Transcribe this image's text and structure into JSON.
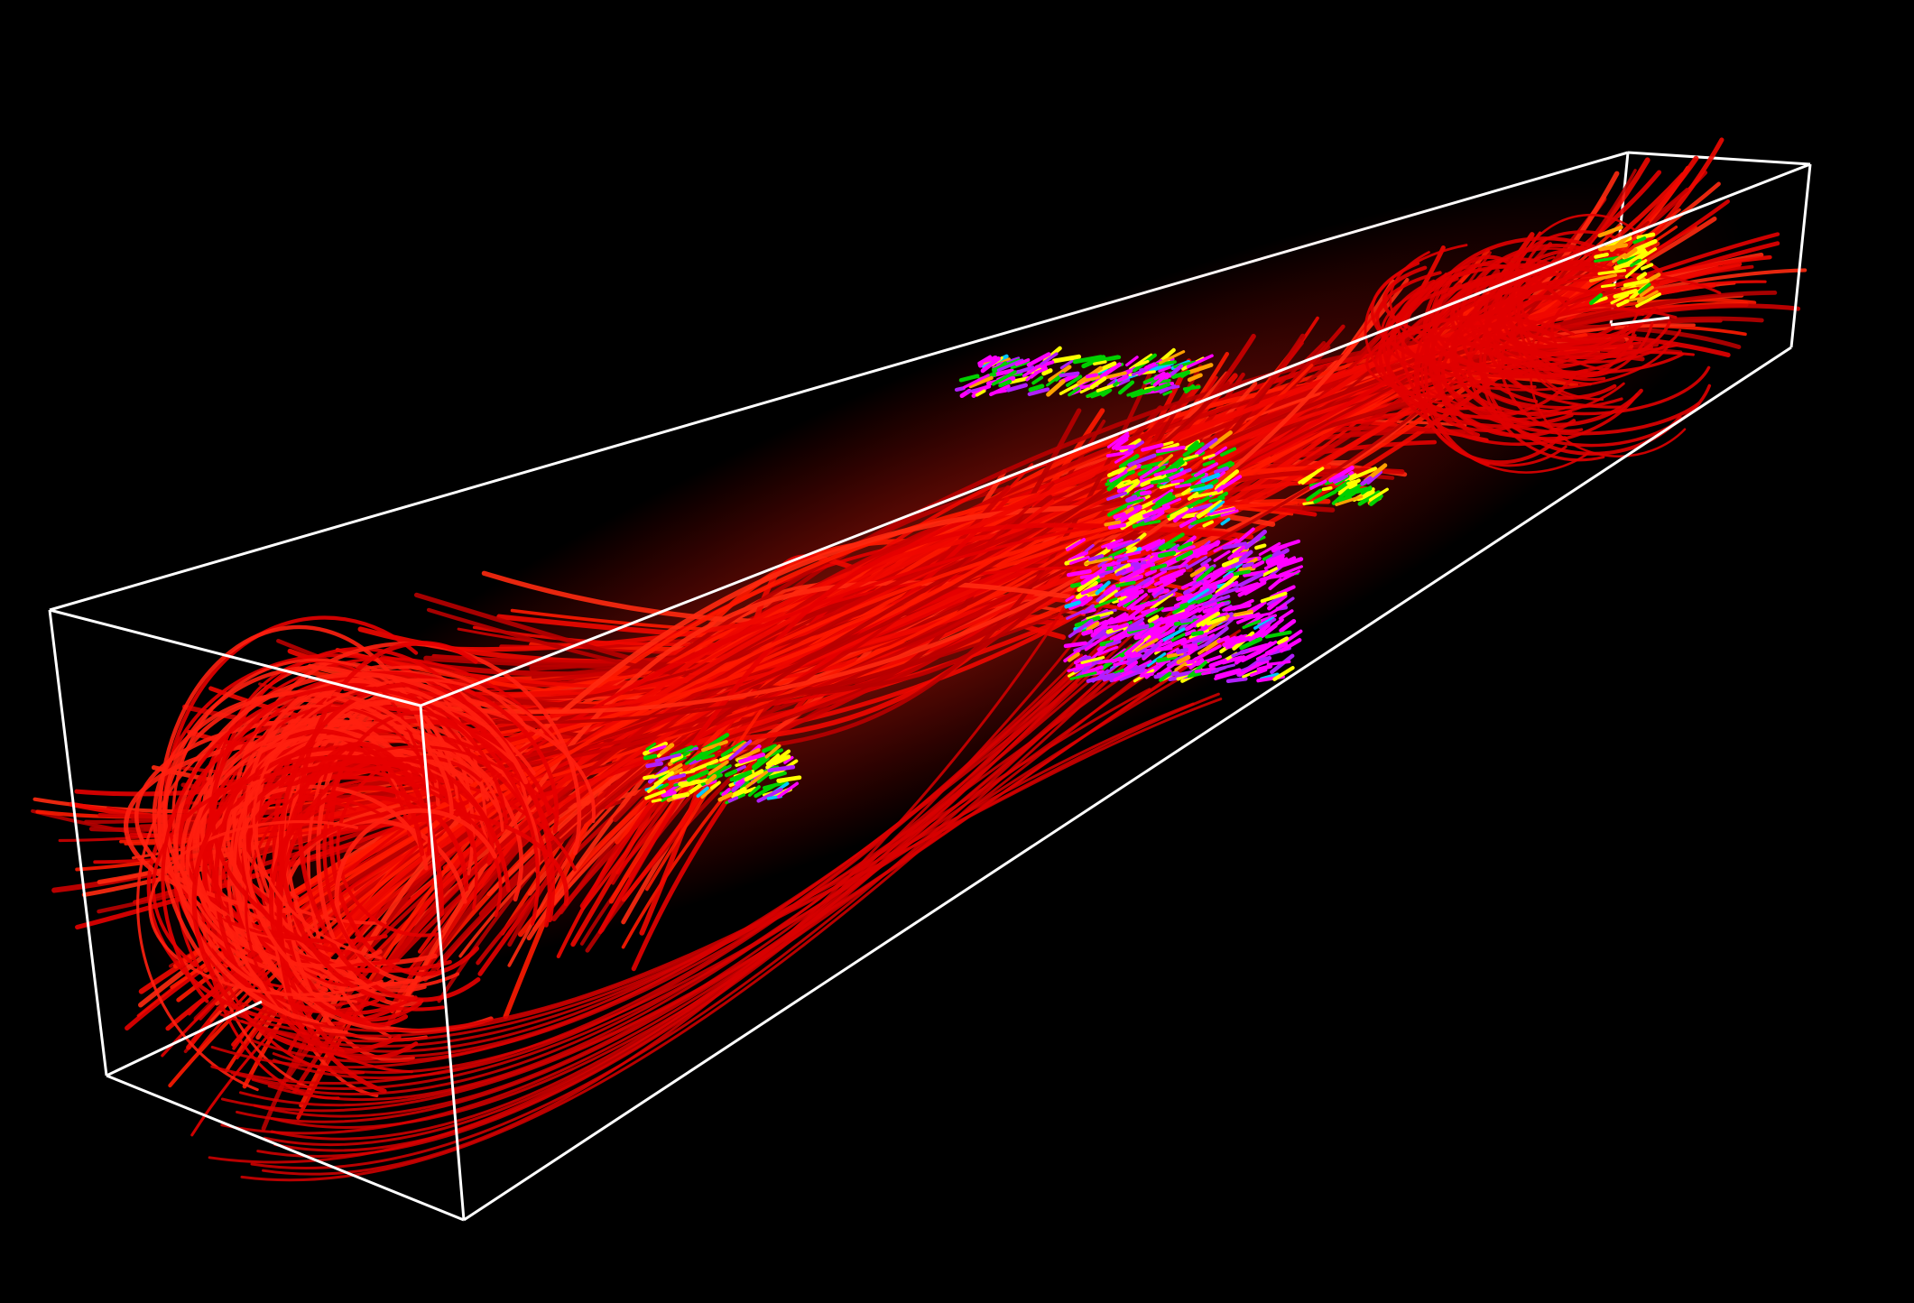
{
  "visualization": {
    "kind": "3d-streamline-rendering",
    "background_color": "#000000",
    "bounding_box_color": "#ffffff",
    "dominant_streamline_color": "#e60000",
    "accent_colors": [
      "#ff00ff",
      "#b020ff",
      "#00d000",
      "#ffff00",
      "#ffa000",
      "#00c8ff"
    ],
    "description_hidden": true
  }
}
